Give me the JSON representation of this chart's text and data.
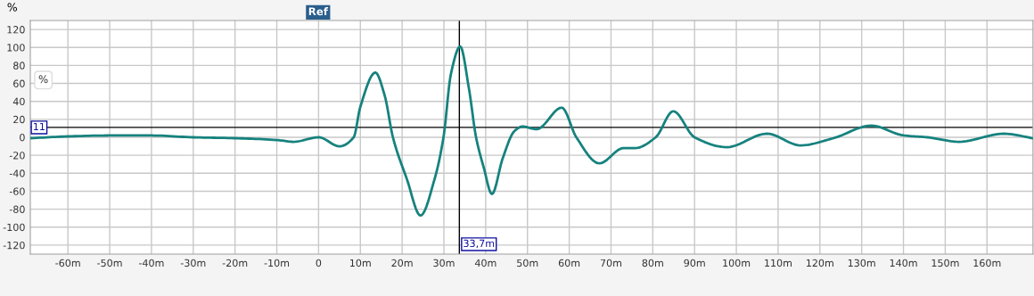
{
  "chart_data": {
    "type": "line",
    "ylabel": "%",
    "x": [
      -69,
      -60,
      -50,
      -40,
      -30,
      -20,
      -10,
      -6,
      0,
      5,
      8.4,
      10,
      13.6,
      15.8,
      17.8,
      21.1,
      24.4,
      27.8,
      29.9,
      31.7,
      33.9,
      36,
      37.7,
      39.5,
      41.5,
      44.1,
      46.9,
      48.8,
      52.2,
      58.2,
      61.7,
      67.2,
      73,
      75.8,
      80.7,
      84.9,
      90,
      97.7,
      107.3,
      115.4,
      123.2,
      132.3,
      140.1,
      145.8,
      153.2,
      164.1,
      171
    ],
    "series": [
      {
        "color": "#16827e",
        "values": [
          -1,
          1,
          2,
          2,
          0,
          -1,
          -3,
          -5,
          0,
          -10,
          0,
          34,
          72,
          47,
          0,
          -46,
          -87,
          -46,
          0,
          71,
          101,
          54,
          0,
          -33,
          -63,
          -23,
          7,
          12,
          9,
          33,
          0,
          -29,
          -12,
          -12,
          0,
          29,
          0,
          -11,
          4,
          -9,
          -1,
          13,
          2,
          0,
          -5,
          4,
          -1
        ]
      }
    ],
    "xlim": [
      -69,
      171
    ],
    "ylim": [
      -130,
      130
    ],
    "xticks": [
      {
        "value": -60,
        "label": "-60m"
      },
      {
        "value": -50,
        "label": "-50m"
      },
      {
        "value": -40,
        "label": "-40m"
      },
      {
        "value": -30,
        "label": "-30m"
      },
      {
        "value": -20,
        "label": "-20m"
      },
      {
        "value": -10,
        "label": "-10m"
      },
      0,
      {
        "value": 10,
        "label": "10m"
      },
      {
        "value": 20,
        "label": "20m"
      },
      {
        "value": 30,
        "label": "30m"
      },
      {
        "value": 40,
        "label": "40m"
      },
      {
        "value": 50,
        "label": "50m"
      },
      {
        "value": 60,
        "label": "60m"
      },
      {
        "value": 70,
        "label": "70m"
      },
      {
        "value": 80,
        "label": "80m"
      },
      {
        "value": 90,
        "label": "90m"
      },
      {
        "value": 100,
        "label": "100m"
      },
      {
        "value": 110,
        "label": "110m"
      },
      {
        "value": 120,
        "label": "120m"
      },
      {
        "value": 130,
        "label": "130m"
      },
      {
        "value": 140,
        "label": "140m"
      },
      {
        "value": 150,
        "label": "150m"
      },
      {
        "value": 160,
        "label": "160m"
      }
    ],
    "yticks": [
      -120,
      -100,
      -80,
      -60,
      -40,
      -20,
      0,
      20,
      40,
      60,
      80,
      100,
      120
    ],
    "ref_lines": [
      {
        "axis": "y",
        "value": 11,
        "label": "11",
        "color": "#000000"
      },
      {
        "axis": "x",
        "value": 33.7,
        "label": "33,7m",
        "color": "#000000"
      }
    ],
    "annotations": [
      "Ref",
      "%"
    ],
    "grid": true,
    "marker": "none",
    "line_style": "solid"
  }
}
